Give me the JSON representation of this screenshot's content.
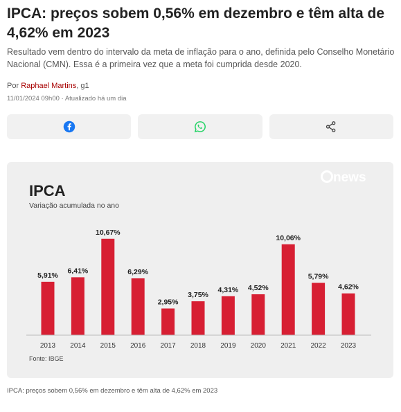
{
  "article": {
    "headline": "IPCA: preços sobem 0,56% em dezembro e têm alta de 4,62% em 2023",
    "subtitle": "Resultado vem dentro do intervalo da meta de inflação para o ano, definida pelo Conselho Monetário Nacional (CMN). Essa é a primeira vez que a meta foi cumprida desde 2020.",
    "byline_prefix": "Por ",
    "author": "Raphael Martins",
    "outlet": ", g1",
    "timestamp": "11/01/2024 09h00 · Atualizado há um dia",
    "caption": "IPCA: preços sobem 0,56% em dezembro e têm alta de 4,62% em 2023"
  },
  "share": {
    "facebook_icon": "facebook-icon",
    "whatsapp_icon": "whatsapp-icon",
    "share_icon": "share-icon",
    "facebook_color": "#1877f2",
    "whatsapp_color": "#25d366"
  },
  "chart_data": {
    "type": "bar",
    "title": "IPCA",
    "subtitle": "Variação acumulada no ano",
    "brand": "news",
    "source": "Fonte: IBGE",
    "categories": [
      "2013",
      "2014",
      "2015",
      "2016",
      "2017",
      "2018",
      "2019",
      "2020",
      "2021",
      "2022",
      "2023"
    ],
    "values": [
      5.91,
      6.41,
      10.67,
      6.29,
      2.95,
      3.75,
      4.31,
      4.52,
      10.06,
      5.79,
      4.62
    ],
    "labels": [
      "5,91%",
      "6,41%",
      "10,67%",
      "6,29%",
      "2,95%",
      "3,75%",
      "4,31%",
      "4,52%",
      "10,06%",
      "5,79%",
      "4,62%"
    ],
    "bar_color": "#d71f33",
    "ylim": [
      0,
      11.5
    ],
    "grid": false
  }
}
